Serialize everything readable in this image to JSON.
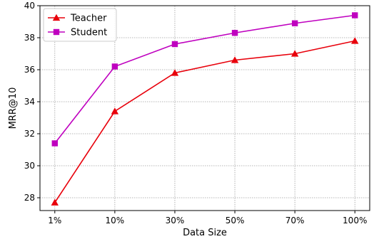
{
  "chart_data": {
    "type": "line",
    "categories": [
      "1%",
      "10%",
      "30%",
      "50%",
      "70%",
      "100%"
    ],
    "series": [
      {
        "name": "Teacher",
        "values": [
          27.7,
          33.4,
          35.8,
          36.6,
          37.0,
          37.8
        ],
        "color": "#e8000b",
        "marker": "triangle"
      },
      {
        "name": "Student",
        "values": [
          31.4,
          36.2,
          37.6,
          38.3,
          38.9,
          39.4
        ],
        "color": "#bf00bf",
        "marker": "square"
      }
    ],
    "title": "",
    "xlabel": "Data Size",
    "ylabel": "MRR@10",
    "ylim": [
      27.2,
      40
    ],
    "yticks": [
      28,
      30,
      32,
      34,
      36,
      38,
      40
    ],
    "grid": true,
    "legend_position": "top-left"
  }
}
